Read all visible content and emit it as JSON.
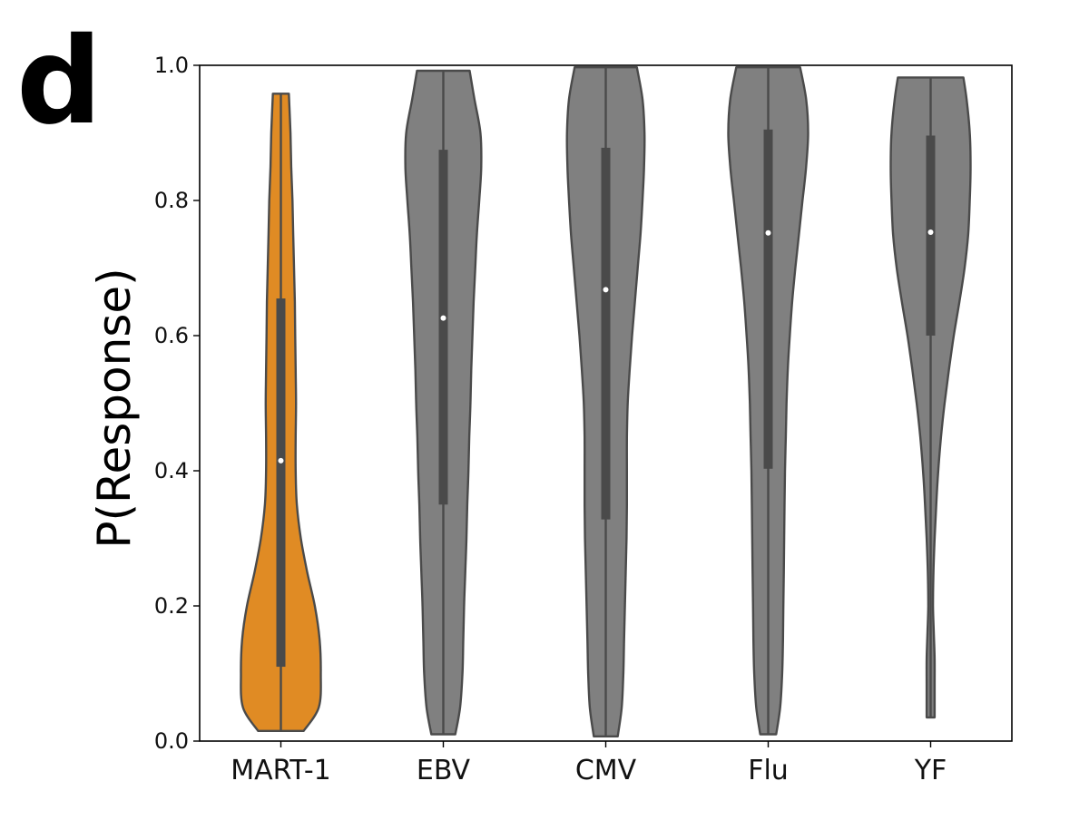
{
  "panel_label": "d",
  "chart_data": {
    "type": "violin",
    "title": "",
    "xlabel": "",
    "ylabel": "P(Response)",
    "ylim": [
      0.0,
      1.0
    ],
    "yticks": [
      "0.0",
      "0.2",
      "0.4",
      "0.6",
      "0.8",
      "1.0"
    ],
    "grid": false,
    "legend": "none",
    "colors": {
      "highlight": "#e08b24",
      "default": "#808080",
      "outline": "#4a4a4a",
      "median": "#ffffff"
    },
    "categories": [
      {
        "name": "MART-1",
        "color": "#e08b24",
        "min": 0.015,
        "max": 0.958,
        "q1": 0.11,
        "q3": 0.655,
        "median": 0.415,
        "density": [
          [
            0.015,
            0.57
          ],
          [
            0.05,
            0.95
          ],
          [
            0.1,
            1.0
          ],
          [
            0.15,
            0.97
          ],
          [
            0.2,
            0.85
          ],
          [
            0.25,
            0.66
          ],
          [
            0.3,
            0.5
          ],
          [
            0.35,
            0.4
          ],
          [
            0.4,
            0.37
          ],
          [
            0.45,
            0.37
          ],
          [
            0.5,
            0.38
          ],
          [
            0.55,
            0.37
          ],
          [
            0.6,
            0.36
          ],
          [
            0.65,
            0.35
          ],
          [
            0.7,
            0.33
          ],
          [
            0.75,
            0.31
          ],
          [
            0.8,
            0.29
          ],
          [
            0.85,
            0.26
          ],
          [
            0.9,
            0.24
          ],
          [
            0.958,
            0.2
          ]
        ]
      },
      {
        "name": "EBV",
        "color": "#808080",
        "min": 0.01,
        "max": 0.992,
        "q1": 0.35,
        "q3": 0.875,
        "median": 0.626,
        "density": [
          [
            0.01,
            0.3
          ],
          [
            0.05,
            0.42
          ],
          [
            0.1,
            0.48
          ],
          [
            0.15,
            0.5
          ],
          [
            0.2,
            0.52
          ],
          [
            0.25,
            0.55
          ],
          [
            0.3,
            0.58
          ],
          [
            0.35,
            0.6
          ],
          [
            0.4,
            0.63
          ],
          [
            0.45,
            0.65
          ],
          [
            0.5,
            0.68
          ],
          [
            0.55,
            0.7
          ],
          [
            0.6,
            0.73
          ],
          [
            0.65,
            0.76
          ],
          [
            0.7,
            0.8
          ],
          [
            0.75,
            0.84
          ],
          [
            0.8,
            0.9
          ],
          [
            0.85,
            0.95
          ],
          [
            0.9,
            0.93
          ],
          [
            0.95,
            0.78
          ],
          [
            0.992,
            0.66
          ]
        ]
      },
      {
        "name": "CMV",
        "color": "#808080",
        "min": 0.007,
        "max": 0.997,
        "q1": 0.328,
        "q3": 0.878,
        "median": 0.668,
        "density": [
          [
            0.007,
            0.3
          ],
          [
            0.05,
            0.4
          ],
          [
            0.1,
            0.44
          ],
          [
            0.15,
            0.46
          ],
          [
            0.2,
            0.48
          ],
          [
            0.25,
            0.5
          ],
          [
            0.3,
            0.52
          ],
          [
            0.35,
            0.53
          ],
          [
            0.4,
            0.53
          ],
          [
            0.45,
            0.53
          ],
          [
            0.5,
            0.55
          ],
          [
            0.55,
            0.6
          ],
          [
            0.6,
            0.66
          ],
          [
            0.65,
            0.73
          ],
          [
            0.7,
            0.8
          ],
          [
            0.75,
            0.87
          ],
          [
            0.8,
            0.92
          ],
          [
            0.85,
            0.96
          ],
          [
            0.9,
            0.97
          ],
          [
            0.95,
            0.92
          ],
          [
            0.997,
            0.78
          ]
        ]
      },
      {
        "name": "Flu",
        "color": "#808080",
        "min": 0.01,
        "max": 0.997,
        "q1": 0.403,
        "q3": 0.905,
        "median": 0.752,
        "density": [
          [
            0.01,
            0.2
          ],
          [
            0.05,
            0.3
          ],
          [
            0.1,
            0.35
          ],
          [
            0.15,
            0.37
          ],
          [
            0.2,
            0.38
          ],
          [
            0.25,
            0.39
          ],
          [
            0.3,
            0.4
          ],
          [
            0.35,
            0.41
          ],
          [
            0.4,
            0.42
          ],
          [
            0.45,
            0.44
          ],
          [
            0.5,
            0.46
          ],
          [
            0.55,
            0.49
          ],
          [
            0.6,
            0.54
          ],
          [
            0.65,
            0.6
          ],
          [
            0.7,
            0.68
          ],
          [
            0.75,
            0.77
          ],
          [
            0.8,
            0.86
          ],
          [
            0.85,
            0.95
          ],
          [
            0.9,
            1.0
          ],
          [
            0.95,
            0.95
          ],
          [
            0.997,
            0.8
          ]
        ]
      },
      {
        "name": "YF",
        "color": "#808080",
        "min": 0.035,
        "max": 0.982,
        "q1": 0.6,
        "q3": 0.896,
        "median": 0.753,
        "density": [
          [
            0.035,
            0.1
          ],
          [
            0.08,
            0.1
          ],
          [
            0.12,
            0.1
          ],
          [
            0.16,
            0.08
          ],
          [
            0.2,
            0.06
          ],
          [
            0.25,
            0.07
          ],
          [
            0.3,
            0.1
          ],
          [
            0.35,
            0.14
          ],
          [
            0.4,
            0.19
          ],
          [
            0.45,
            0.26
          ],
          [
            0.5,
            0.35
          ],
          [
            0.55,
            0.46
          ],
          [
            0.6,
            0.58
          ],
          [
            0.65,
            0.72
          ],
          [
            0.7,
            0.85
          ],
          [
            0.75,
            0.94
          ],
          [
            0.8,
            0.98
          ],
          [
            0.85,
            1.0
          ],
          [
            0.9,
            0.98
          ],
          [
            0.95,
            0.9
          ],
          [
            0.982,
            0.82
          ]
        ]
      }
    ]
  }
}
